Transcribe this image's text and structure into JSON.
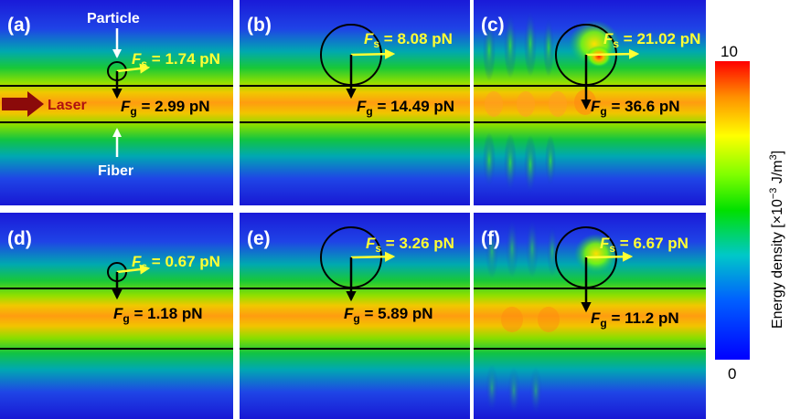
{
  "panels": [
    {
      "label": "(a)",
      "fs": "1.74 pN",
      "fg": "2.99 pN"
    },
    {
      "label": "(b)",
      "fs": "8.08 pN",
      "fg": "14.49 pN"
    },
    {
      "label": "(c)",
      "fs": "21.02 pN",
      "fg": "36.6 pN"
    },
    {
      "label": "(d)",
      "fs": "0.67 pN",
      "fg": "1.18 pN"
    },
    {
      "label": "(e)",
      "fs": "3.26 pN",
      "fg": "5.89 pN"
    },
    {
      "label": "(f)",
      "fs": "6.67 pN",
      "fg": "11.2 pN"
    }
  ],
  "force_symbols": {
    "main": "F",
    "scattering_sub": "s",
    "gradient_sub": "g"
  },
  "annotations": {
    "particle": "Particle",
    "fiber": "Fiber",
    "laser": "Laser"
  },
  "colorbar": {
    "max_label": "10",
    "min_label": "0",
    "title": "Energy density [×10",
    "title_exp": "−3",
    "title_unit": " J/m",
    "title_unit_exp": "3",
    "title_close": "]",
    "colors": [
      "#0000ff",
      "#0060ff",
      "#00c8c8",
      "#00e000",
      "#80ff00",
      "#ffff00",
      "#ff9000",
      "#ff0000"
    ]
  },
  "colors": {
    "field_low": "#1e2ee0",
    "field_mid": "#00c060",
    "field_high": "#ff9a00",
    "scattering_arrow": "#ffff33",
    "gradient_arrow": "#000000",
    "laser_arrow": "#8b0a0a"
  }
}
